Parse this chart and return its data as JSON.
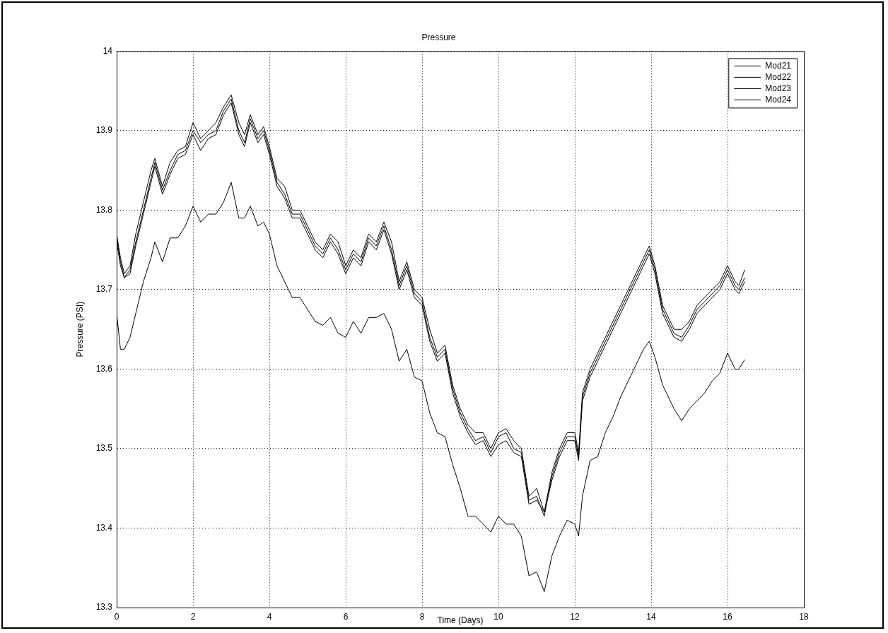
{
  "chart_data": {
    "type": "line",
    "title": "Pressure",
    "xlabel": "Time (Days)",
    "ylabel": "Pressure (PSI)",
    "xlim": [
      0,
      18
    ],
    "xticks": [
      0,
      2,
      4,
      6,
      8,
      10,
      12,
      14,
      16,
      18
    ],
    "ylim": [
      13.3,
      14
    ],
    "yticks": [
      13.3,
      13.4,
      13.5,
      13.6,
      13.7,
      13.8,
      13.9,
      14
    ],
    "grid": true,
    "legend": "top right",
    "marker": "none",
    "line_style": "solid",
    "x": [
      0,
      0.1,
      0.2,
      0.35,
      0.5,
      0.7,
      0.9,
      1.0,
      1.2,
      1.4,
      1.6,
      1.8,
      2.0,
      2.2,
      2.4,
      2.6,
      2.8,
      3.0,
      3.2,
      3.35,
      3.5,
      3.7,
      3.85,
      4.0,
      4.2,
      4.4,
      4.6,
      4.8,
      5.0,
      5.2,
      5.4,
      5.6,
      5.8,
      6.0,
      6.2,
      6.4,
      6.6,
      6.8,
      7.0,
      7.2,
      7.4,
      7.6,
      7.8,
      8.0,
      8.2,
      8.4,
      8.6,
      8.8,
      9.0,
      9.2,
      9.4,
      9.6,
      9.8,
      10.0,
      10.2,
      10.4,
      10.6,
      10.8,
      11.0,
      11.2,
      11.4,
      11.6,
      11.8,
      12.0,
      12.1,
      12.2,
      12.4,
      12.6,
      12.8,
      13.0,
      13.2,
      13.4,
      13.6,
      13.8,
      13.95,
      14.1,
      14.3,
      14.6,
      14.8,
      15.0,
      15.2,
      15.4,
      15.6,
      15.8,
      16.0,
      16.2,
      16.3,
      16.45
    ],
    "series": [
      {
        "name": "Mod21",
        "color": "#000000",
        "values": [
          13.77,
          13.74,
          13.72,
          13.73,
          13.77,
          13.81,
          13.85,
          13.865,
          13.83,
          13.86,
          13.875,
          13.88,
          13.91,
          13.89,
          13.9,
          13.91,
          13.93,
          13.945,
          13.91,
          13.895,
          13.92,
          13.895,
          13.905,
          13.88,
          13.84,
          13.83,
          13.8,
          13.8,
          13.78,
          13.76,
          13.75,
          13.77,
          13.76,
          13.73,
          13.75,
          13.74,
          13.77,
          13.76,
          13.785,
          13.76,
          13.71,
          13.735,
          13.7,
          13.69,
          13.65,
          13.62,
          13.63,
          13.58,
          13.55,
          13.53,
          13.52,
          13.52,
          13.5,
          13.52,
          13.525,
          13.51,
          13.5,
          13.44,
          13.45,
          13.42,
          13.47,
          13.5,
          13.52,
          13.52,
          13.495,
          13.57,
          13.6,
          13.62,
          13.64,
          13.66,
          13.68,
          13.7,
          13.72,
          13.74,
          13.755,
          13.73,
          13.68,
          13.65,
          13.65,
          13.66,
          13.68,
          13.69,
          13.7,
          13.71,
          13.73,
          13.71,
          13.705,
          13.725
        ]
      },
      {
        "name": "Mod22",
        "color": "#000000",
        "values": [
          13.765,
          13.735,
          13.715,
          13.725,
          13.76,
          13.8,
          13.84,
          13.86,
          13.825,
          13.85,
          13.87,
          13.875,
          13.9,
          13.885,
          13.895,
          13.9,
          13.925,
          13.94,
          13.9,
          13.885,
          13.915,
          13.89,
          13.9,
          13.875,
          13.835,
          13.82,
          13.795,
          13.795,
          13.775,
          13.755,
          13.745,
          13.765,
          13.75,
          13.725,
          13.745,
          13.735,
          13.765,
          13.755,
          13.78,
          13.75,
          13.705,
          13.73,
          13.695,
          13.685,
          13.64,
          13.615,
          13.625,
          13.575,
          13.545,
          13.525,
          13.51,
          13.515,
          13.495,
          13.515,
          13.52,
          13.5,
          13.495,
          13.435,
          13.44,
          13.415,
          13.465,
          13.495,
          13.515,
          13.515,
          13.49,
          13.565,
          13.595,
          13.615,
          13.635,
          13.655,
          13.675,
          13.695,
          13.715,
          13.735,
          13.75,
          13.725,
          13.675,
          13.645,
          13.64,
          13.655,
          13.675,
          13.685,
          13.695,
          13.705,
          13.725,
          13.705,
          13.7,
          13.715
        ]
      },
      {
        "name": "Mod23",
        "color": "#000000",
        "values": [
          13.76,
          13.73,
          13.715,
          13.72,
          13.755,
          13.795,
          13.835,
          13.855,
          13.82,
          13.845,
          13.865,
          13.87,
          13.895,
          13.875,
          13.89,
          13.895,
          13.92,
          13.935,
          13.895,
          13.88,
          13.91,
          13.885,
          13.895,
          13.87,
          13.83,
          13.815,
          13.79,
          13.79,
          13.77,
          13.75,
          13.74,
          13.76,
          13.745,
          13.72,
          13.74,
          13.73,
          13.76,
          13.75,
          13.775,
          13.745,
          13.7,
          13.725,
          13.69,
          13.68,
          13.635,
          13.61,
          13.62,
          13.57,
          13.54,
          13.52,
          13.505,
          13.51,
          13.49,
          13.505,
          13.51,
          13.495,
          13.49,
          13.43,
          13.435,
          13.42,
          13.46,
          13.49,
          13.51,
          13.51,
          13.485,
          13.56,
          13.59,
          13.61,
          13.63,
          13.65,
          13.67,
          13.69,
          13.71,
          13.73,
          13.745,
          13.72,
          13.67,
          13.64,
          13.635,
          13.65,
          13.67,
          13.68,
          13.69,
          13.7,
          13.72,
          13.7,
          13.695,
          13.71
        ]
      },
      {
        "name": "Mod24",
        "color": "#000000",
        "values": [
          13.67,
          13.625,
          13.625,
          13.64,
          13.67,
          13.71,
          13.74,
          13.76,
          13.735,
          13.765,
          13.765,
          13.78,
          13.805,
          13.785,
          13.795,
          13.795,
          13.81,
          13.835,
          13.79,
          13.79,
          13.805,
          13.78,
          13.785,
          13.77,
          13.73,
          13.71,
          13.69,
          13.69,
          13.675,
          13.66,
          13.655,
          13.665,
          13.645,
          13.64,
          13.66,
          13.645,
          13.665,
          13.665,
          13.67,
          13.65,
          13.61,
          13.625,
          13.59,
          13.585,
          13.545,
          13.52,
          13.515,
          13.48,
          13.45,
          13.415,
          13.415,
          13.405,
          13.395,
          13.415,
          13.405,
          13.405,
          13.39,
          13.34,
          13.345,
          13.32,
          13.365,
          13.39,
          13.41,
          13.405,
          13.39,
          13.44,
          13.485,
          13.49,
          13.52,
          13.54,
          13.565,
          13.585,
          13.605,
          13.625,
          13.635,
          13.615,
          13.58,
          13.55,
          13.535,
          13.55,
          13.56,
          13.57,
          13.585,
          13.595,
          13.62,
          13.6,
          13.6,
          13.612
        ]
      }
    ]
  }
}
